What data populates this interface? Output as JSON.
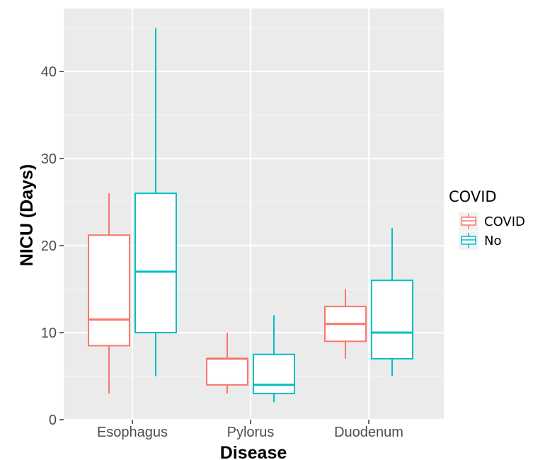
{
  "chart_data": {
    "type": "boxplot",
    "xlabel": "Disease",
    "ylabel": "NICU (Days)",
    "categories": [
      "Esophagus",
      "Pylorus",
      "Duodenum"
    ],
    "ylim": [
      0,
      45
    ],
    "y_ticks": [
      0,
      10,
      20,
      30,
      40
    ],
    "grid": true,
    "legend": {
      "title": "COVID",
      "position": "right",
      "entries": [
        "COVID",
        "No"
      ]
    },
    "series": [
      {
        "name": "COVID",
        "color": "#F8766D",
        "boxes": [
          {
            "category": "Esophagus",
            "min": 3,
            "q1": 8.5,
            "median": 11.5,
            "q3": 21.2,
            "max": 26
          },
          {
            "category": "Pylorus",
            "min": 3,
            "q1": 4,
            "median": 7,
            "q3": 7,
            "max": 10
          },
          {
            "category": "Duodenum",
            "min": 7,
            "q1": 9,
            "median": 11,
            "q3": 13,
            "max": 15
          }
        ]
      },
      {
        "name": "No",
        "color": "#00BFC4",
        "boxes": [
          {
            "category": "Esophagus",
            "min": 5,
            "q1": 10,
            "median": 17,
            "q3": 26,
            "max": 45
          },
          {
            "category": "Pylorus",
            "min": 2,
            "q1": 3,
            "median": 4,
            "q3": 7.5,
            "max": 12
          },
          {
            "category": "Duodenum",
            "min": 5,
            "q1": 7,
            "median": 10,
            "q3": 16,
            "max": 22
          }
        ]
      }
    ]
  }
}
